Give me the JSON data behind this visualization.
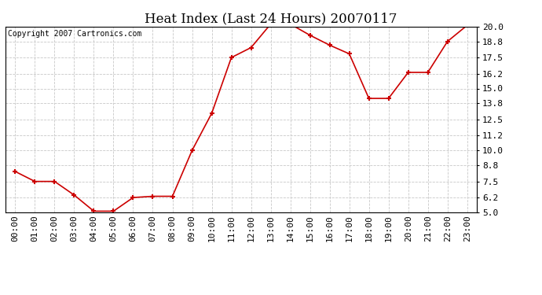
{
  "title": "Heat Index (Last 24 Hours) 20070117",
  "copyright_text": "Copyright 2007 Cartronics.com",
  "x_labels": [
    "00:00",
    "01:00",
    "02:00",
    "03:00",
    "04:00",
    "05:00",
    "06:00",
    "07:00",
    "08:00",
    "09:00",
    "10:00",
    "11:00",
    "12:00",
    "13:00",
    "14:00",
    "15:00",
    "16:00",
    "17:00",
    "18:00",
    "19:00",
    "20:00",
    "21:00",
    "22:00",
    "23:00"
  ],
  "y_values": [
    8.3,
    7.5,
    7.5,
    6.4,
    5.1,
    5.1,
    6.2,
    6.3,
    6.3,
    10.0,
    13.0,
    17.5,
    18.3,
    20.2,
    20.2,
    19.3,
    18.5,
    17.8,
    14.2,
    14.2,
    16.3,
    16.3,
    18.8,
    20.1
  ],
  "line_color": "#cc0000",
  "marker_color": "#cc0000",
  "background_color": "#ffffff",
  "plot_bg_color": "#ffffff",
  "grid_color": "#c8c8c8",
  "y_min": 5.0,
  "y_max": 20.0,
  "y_ticks": [
    5.0,
    6.2,
    7.5,
    8.8,
    10.0,
    11.2,
    12.5,
    13.8,
    15.0,
    16.2,
    17.5,
    18.8,
    20.0
  ],
  "title_fontsize": 12,
  "copyright_fontsize": 7,
  "tick_fontsize": 8
}
